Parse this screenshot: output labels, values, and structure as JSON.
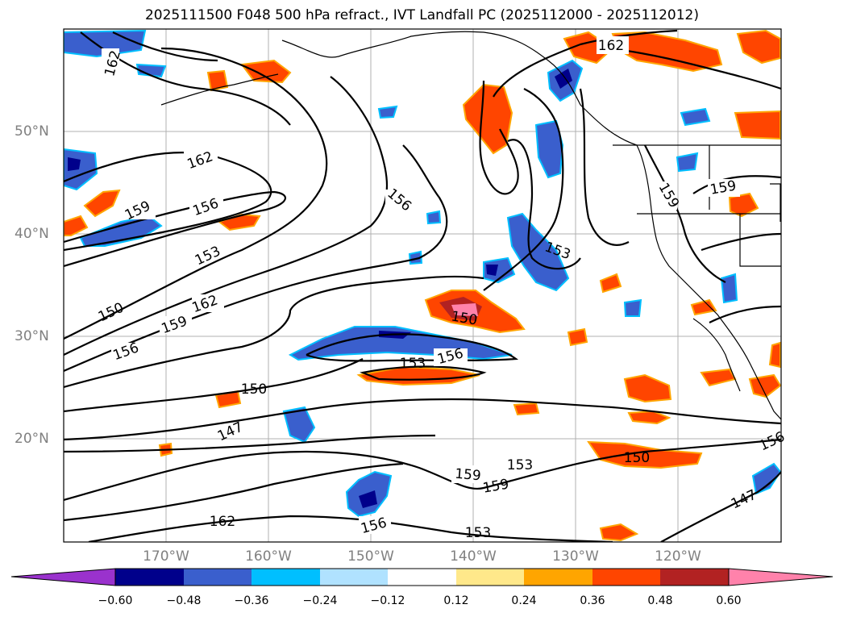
{
  "title": "2025111500 F048 500 hPa refract., IVT Landfall PC (2025112000 - 2025112012)",
  "axes": {
    "lat_labels": [
      "50°N",
      "40°N",
      "30°N",
      "20°N"
    ],
    "lon_labels": [
      "170°W",
      "160°W",
      "150°W",
      "140°W",
      "130°W",
      "120°W"
    ]
  },
  "contour_labels": [
    "162",
    "162",
    "162",
    "162",
    "159",
    "159",
    "159",
    "159",
    "159",
    "156",
    "156",
    "156",
    "156",
    "156",
    "156",
    "153",
    "153",
    "153",
    "153",
    "153",
    "150",
    "150",
    "150",
    "150",
    "147",
    "147"
  ],
  "colorbar": {
    "colors": [
      "#9a32cd",
      "#00008b",
      "#3a5fcd",
      "#00bfff",
      "#b0e2ff",
      "#ffffff",
      "#ffe88a",
      "#ffa500",
      "#ff4500",
      "#b22222",
      "#ff82ab"
    ],
    "tick_labels": [
      "−0.60",
      "−0.48",
      "−0.36",
      "−0.24",
      "−0.12",
      "0.12",
      "0.24",
      "0.36",
      "0.48",
      "0.60"
    ]
  },
  "colors": {
    "contour": "#000000",
    "grid": "#b0b0b0",
    "axis_label": "#808080"
  }
}
